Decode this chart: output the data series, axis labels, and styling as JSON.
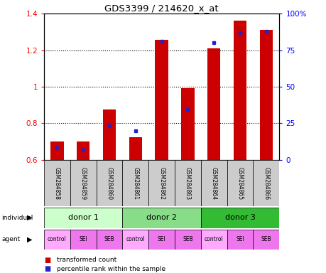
{
  "title": "GDS3399 / 214620_x_at",
  "samples": [
    "GSM284858",
    "GSM284859",
    "GSM284860",
    "GSM284861",
    "GSM284862",
    "GSM284863",
    "GSM284864",
    "GSM284865",
    "GSM284866"
  ],
  "red_values": [
    0.7,
    0.7,
    0.875,
    0.725,
    1.255,
    0.99,
    1.21,
    1.36,
    1.31
  ],
  "blue_values": [
    0.665,
    0.655,
    0.785,
    0.76,
    1.25,
    0.875,
    1.24,
    1.295,
    1.305
  ],
  "ymin": 0.6,
  "ymax": 1.4,
  "y_left_ticks": [
    0.6,
    0.8,
    1.0,
    1.2,
    1.4
  ],
  "y_right_labels": [
    "0",
    "25",
    "50",
    "75",
    "100%"
  ],
  "y_right_percents": [
    0,
    25,
    50,
    75,
    100
  ],
  "bar_color": "#cc0000",
  "dot_color": "#2222cc",
  "sample_bg_color": "#cccccc",
  "ind_colors": [
    "#ccffcc",
    "#88dd88",
    "#33bb33"
  ],
  "ind_labels": [
    "donor 1",
    "donor 2",
    "donor 3"
  ],
  "agent_labels": [
    "control",
    "SEI",
    "SEB",
    "control",
    "SEI",
    "SEB",
    "control",
    "SEI",
    "SEB"
  ],
  "agent_colors": [
    "#ffaaff",
    "#ee77ee",
    "#ee77ee",
    "#ffaaff",
    "#ee77ee",
    "#ee77ee",
    "#ffaaff",
    "#ee77ee",
    "#ee77ee"
  ],
  "legend_items": [
    {
      "label": "transformed count",
      "color": "#cc0000"
    },
    {
      "label": "percentile rank within the sample",
      "color": "#2222cc"
    }
  ]
}
